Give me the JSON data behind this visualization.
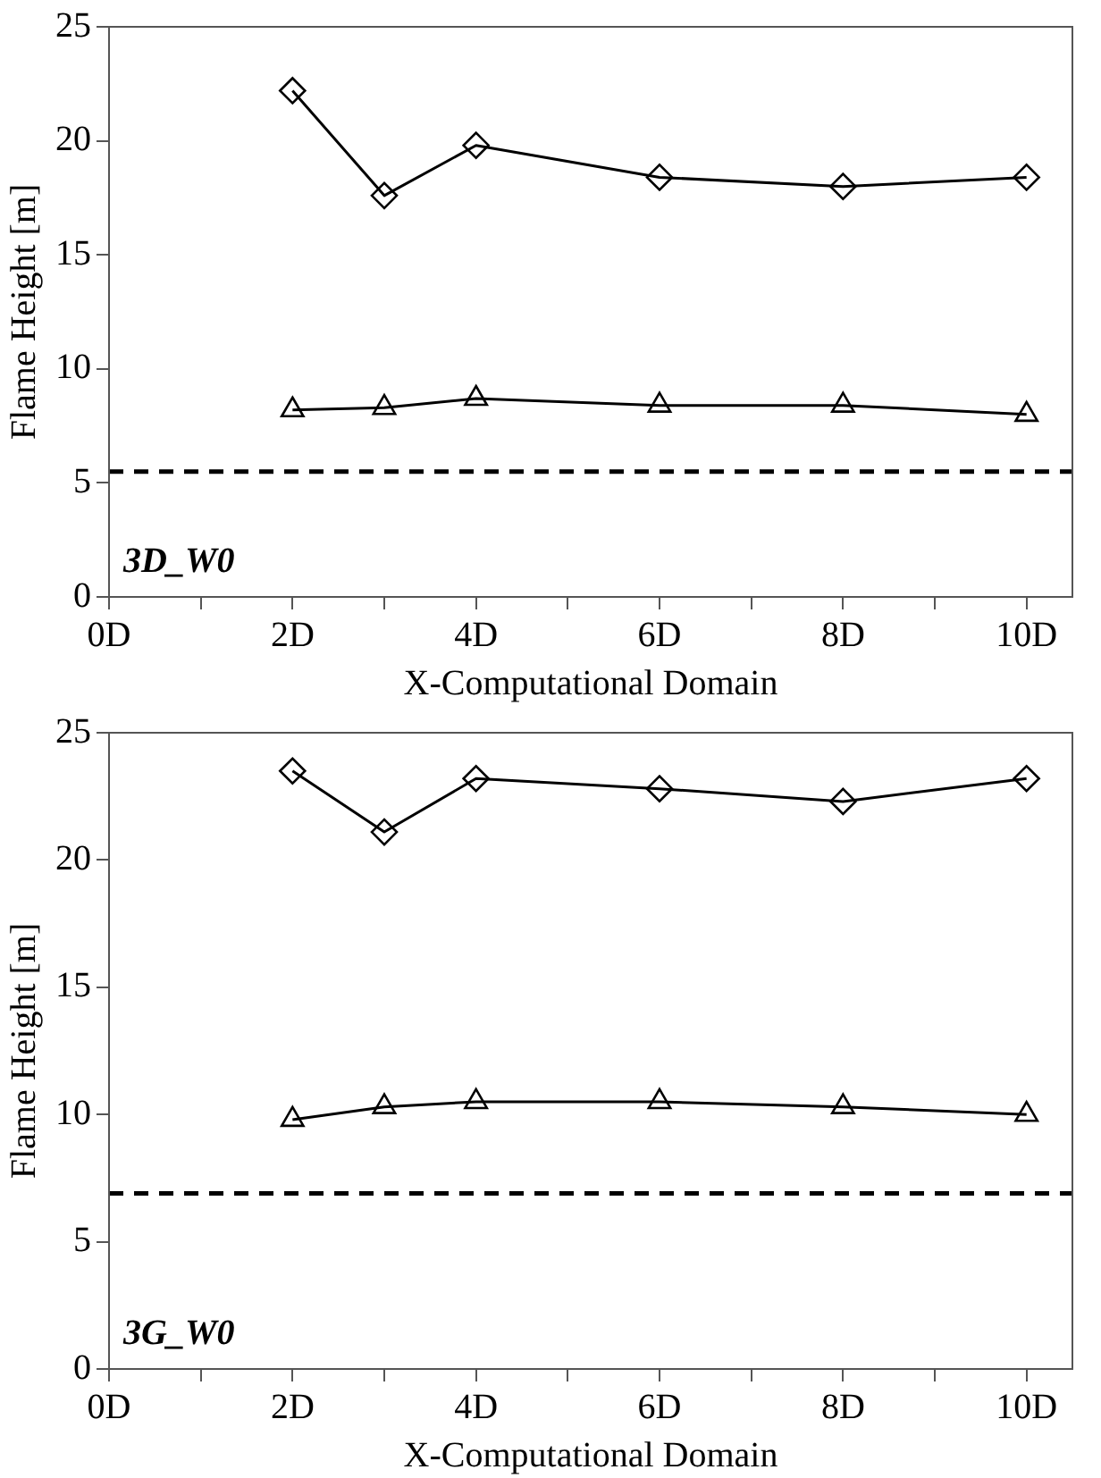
{
  "chart_data": [
    {
      "type": "line",
      "xlabel": "X-Computational Domain",
      "ylabel": "Flame Height [m]",
      "annotations": [
        "3D_W0"
      ],
      "x": [
        2,
        3,
        4,
        6,
        8,
        10
      ],
      "series": [
        {
          "color": "#000000",
          "marker": "diamond",
          "values": [
            22.2,
            17.6,
            19.8,
            18.4,
            18.0,
            18.4
          ]
        },
        {
          "color": "#000000",
          "marker": "triangle",
          "values": [
            8.2,
            8.3,
            8.7,
            8.4,
            8.4,
            8.0
          ]
        }
      ],
      "xlim": [
        0,
        10.5
      ],
      "xticks": [
        {
          "value": 0,
          "label": "0D"
        },
        {
          "value": 1,
          "label": null
        },
        {
          "value": 2,
          "label": "2D"
        },
        {
          "value": 3,
          "label": null
        },
        {
          "value": 4,
          "label": "4D"
        },
        {
          "value": 5,
          "label": null
        },
        {
          "value": 6,
          "label": "6D"
        },
        {
          "value": 7,
          "label": null
        },
        {
          "value": 8,
          "label": "8D"
        },
        {
          "value": 9,
          "label": null
        },
        {
          "value": 10,
          "label": "10D"
        }
      ],
      "ylim": [
        0,
        25
      ],
      "yticks": [
        0,
        5,
        10,
        15,
        20,
        25
      ],
      "grid": false,
      "legend": false,
      "ref_lines": [
        {
          "axis": "y",
          "value": 5.5,
          "color": "#000000",
          "line_style": "dashed"
        }
      ]
    },
    {
      "type": "line",
      "xlabel": "X-Computational Domain",
      "ylabel": "Flame Height [m]",
      "annotations": [
        "3G_W0"
      ],
      "x": [
        2,
        3,
        4,
        6,
        8,
        10
      ],
      "series": [
        {
          "color": "#000000",
          "marker": "diamond",
          "values": [
            23.5,
            21.1,
            23.2,
            22.8,
            22.3,
            23.2
          ]
        },
        {
          "color": "#000000",
          "marker": "triangle",
          "values": [
            9.8,
            10.3,
            10.5,
            10.5,
            10.3,
            10.0
          ]
        }
      ],
      "xlim": [
        0,
        10.5
      ],
      "xticks": [
        {
          "value": 0,
          "label": "0D"
        },
        {
          "value": 1,
          "label": null
        },
        {
          "value": 2,
          "label": "2D"
        },
        {
          "value": 3,
          "label": null
        },
        {
          "value": 4,
          "label": "4D"
        },
        {
          "value": 5,
          "label": null
        },
        {
          "value": 6,
          "label": "6D"
        },
        {
          "value": 7,
          "label": null
        },
        {
          "value": 8,
          "label": "8D"
        },
        {
          "value": 9,
          "label": null
        },
        {
          "value": 10,
          "label": "10D"
        }
      ],
      "ylim": [
        0,
        25
      ],
      "yticks": [
        0,
        5,
        10,
        15,
        20,
        25
      ],
      "grid": false,
      "legend": false,
      "ref_lines": [
        {
          "axis": "y",
          "value": 6.9,
          "color": "#000000",
          "line_style": "dashed"
        }
      ]
    }
  ]
}
